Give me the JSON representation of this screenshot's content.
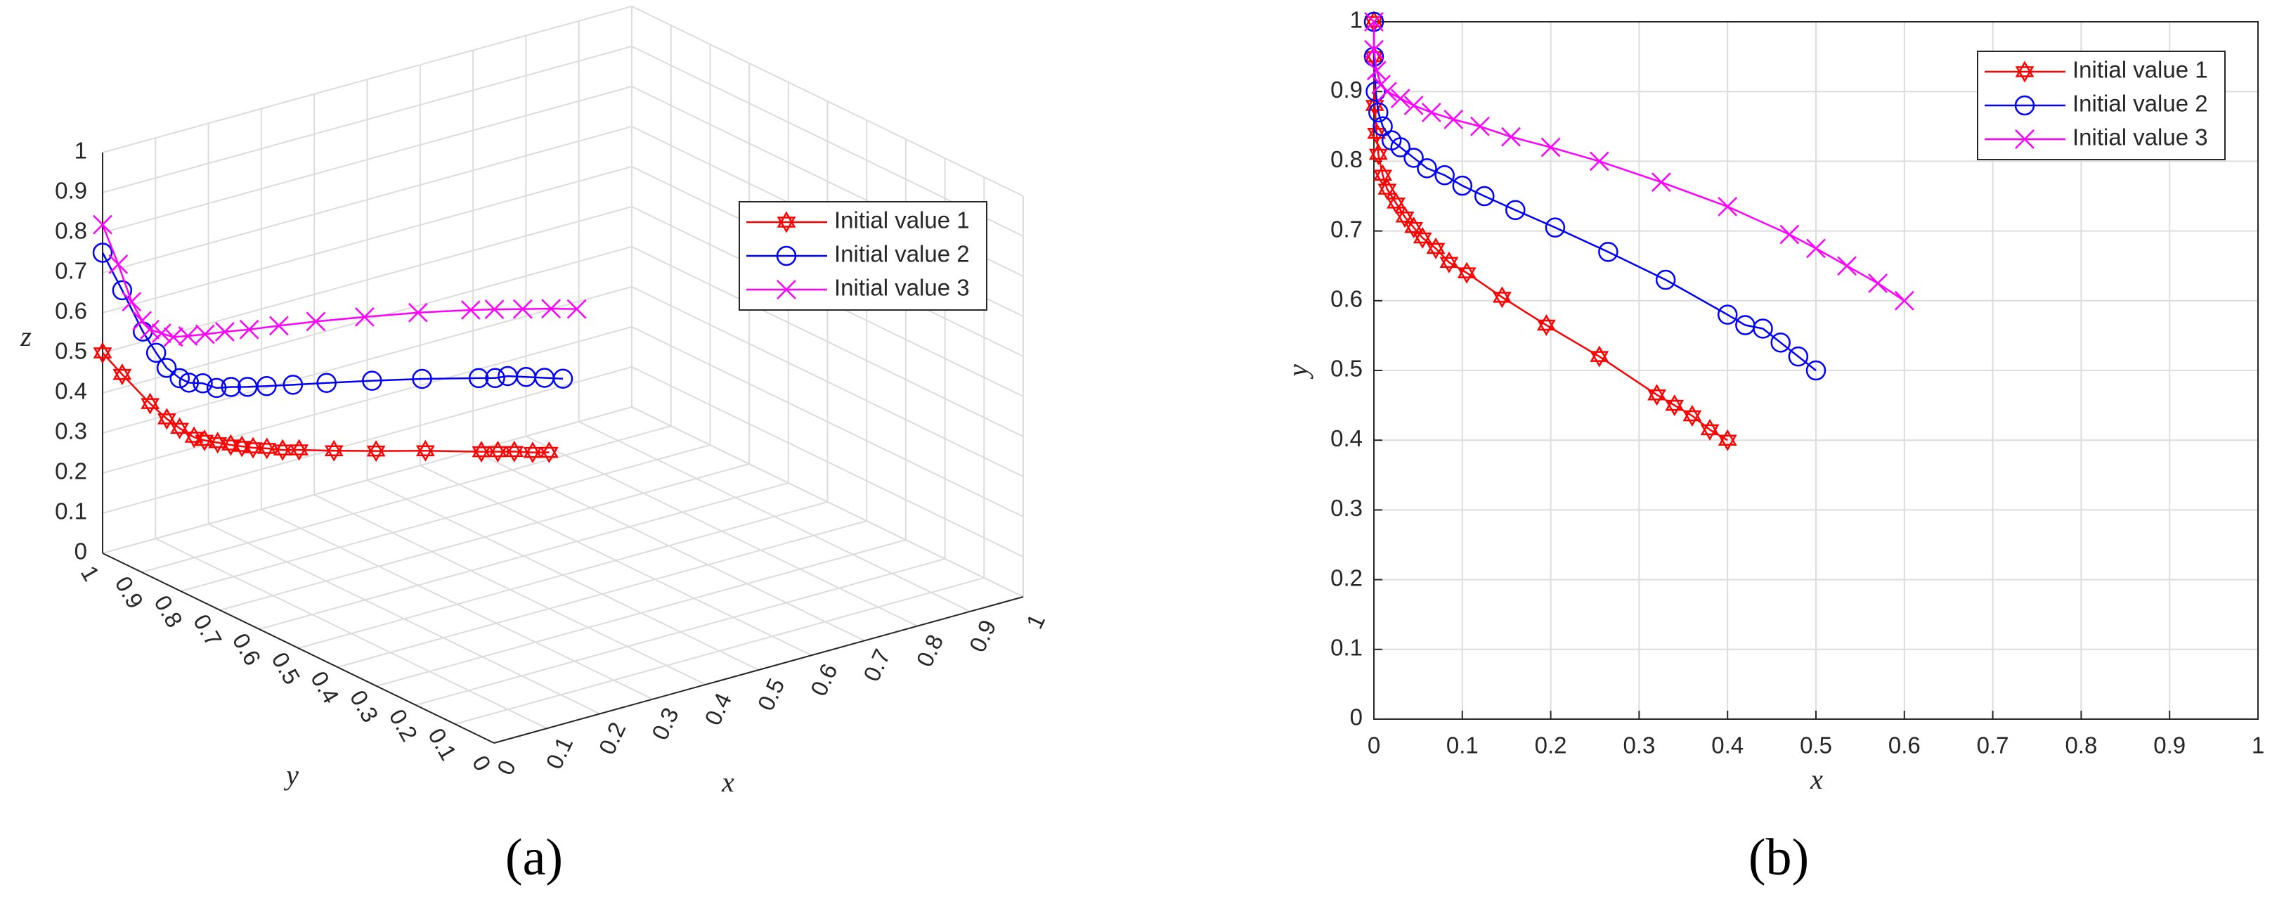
{
  "chart_data": [
    {
      "type": "line3d",
      "caption": "(a)",
      "xlabel": "x",
      "ylabel": "y",
      "zlabel": "z",
      "xlim": [
        0,
        1
      ],
      "ylim": [
        0,
        1
      ],
      "zlim": [
        0,
        1
      ],
      "xticks": [
        0,
        0.1,
        0.2,
        0.3,
        0.4,
        0.5,
        0.6,
        0.7,
        0.8,
        0.9,
        1
      ],
      "yticks": [
        0,
        0.1,
        0.2,
        0.3,
        0.4,
        0.5,
        0.6,
        0.7,
        0.8,
        0.9,
        1
      ],
      "zticks": [
        0,
        0.1,
        0.2,
        0.3,
        0.4,
        0.5,
        0.6,
        0.7,
        0.8,
        0.9,
        1
      ],
      "grid": true,
      "legend": "northeast",
      "series": [
        {
          "name": "Initial value 1",
          "color": "#ff0000",
          "marker": "hexagram",
          "x": [
            0.4,
            0.38,
            0.36,
            0.34,
            0.32,
            0.255,
            0.195,
            0.145,
            0.105,
            0.085,
            0.07,
            0.055,
            0.045,
            0.035,
            0.025,
            0.015,
            0.01,
            0.005,
            0.003,
            0.001,
            0,
            0
          ],
          "y": [
            0.4,
            0.415,
            0.435,
            0.45,
            0.465,
            0.52,
            0.565,
            0.605,
            0.64,
            0.655,
            0.675,
            0.69,
            0.705,
            0.72,
            0.74,
            0.76,
            0.78,
            0.81,
            0.84,
            0.88,
            0.95,
            1
          ],
          "z": [
            0.39,
            0.39,
            0.39,
            0.39,
            0.39,
            0.39,
            0.39,
            0.39,
            0.39,
            0.39,
            0.39,
            0.39,
            0.39,
            0.39,
            0.39,
            0.39,
            0.39,
            0.4,
            0.41,
            0.43,
            0.47,
            0.5
          ]
        },
        {
          "name": "Initial value 2",
          "color": "#0000ff",
          "marker": "circle",
          "x": [
            0.5,
            0.48,
            0.46,
            0.44,
            0.42,
            0.4,
            0.33,
            0.265,
            0.205,
            0.16,
            0.125,
            0.1,
            0.08,
            0.06,
            0.045,
            0.03,
            0.02,
            0.01,
            0.005,
            0.002,
            0,
            0
          ],
          "y": [
            0.5,
            0.52,
            0.54,
            0.56,
            0.565,
            0.58,
            0.63,
            0.67,
            0.705,
            0.73,
            0.75,
            0.765,
            0.78,
            0.79,
            0.805,
            0.82,
            0.83,
            0.85,
            0.87,
            0.9,
            0.95,
            1
          ],
          "z": [
            0.49,
            0.49,
            0.49,
            0.49,
            0.49,
            0.49,
            0.49,
            0.49,
            0.49,
            0.49,
            0.49,
            0.49,
            0.49,
            0.49,
            0.5,
            0.5,
            0.51,
            0.53,
            0.56,
            0.6,
            0.68,
            0.75
          ]
        },
        {
          "name": "Initial value 3",
          "color": "#ff00ff",
          "marker": "x",
          "x": [
            0.6,
            0.57,
            0.535,
            0.5,
            0.47,
            0.4,
            0.325,
            0.255,
            0.2,
            0.155,
            0.12,
            0.09,
            0.065,
            0.045,
            0.03,
            0.015,
            0.008,
            0.003,
            0,
            0
          ],
          "y": [
            0.6,
            0.625,
            0.65,
            0.675,
            0.695,
            0.735,
            0.77,
            0.8,
            0.82,
            0.835,
            0.85,
            0.86,
            0.87,
            0.88,
            0.89,
            0.9,
            0.91,
            0.93,
            0.96,
            1
          ],
          "z": [
            0.58,
            0.58,
            0.58,
            0.58,
            0.58,
            0.58,
            0.58,
            0.58,
            0.58,
            0.58,
            0.58,
            0.58,
            0.58,
            0.58,
            0.59,
            0.6,
            0.62,
            0.66,
            0.74,
            0.82
          ]
        }
      ]
    },
    {
      "type": "line",
      "caption": "(b)",
      "xlabel": "x",
      "ylabel": "y",
      "xlim": [
        0,
        1
      ],
      "ylim": [
        0,
        1
      ],
      "xticks": [
        0,
        0.1,
        0.2,
        0.3,
        0.4,
        0.5,
        0.6,
        0.7,
        0.8,
        0.9,
        1
      ],
      "yticks": [
        0,
        0.1,
        0.2,
        0.3,
        0.4,
        0.5,
        0.6,
        0.7,
        0.8,
        0.9,
        1
      ],
      "grid": true,
      "legend": "northeast",
      "series": [
        {
          "name": "Initial value 1",
          "color": "#ff0000",
          "marker": "hexagram",
          "x": [
            0.4,
            0.38,
            0.36,
            0.34,
            0.32,
            0.255,
            0.195,
            0.145,
            0.105,
            0.085,
            0.07,
            0.055,
            0.045,
            0.035,
            0.025,
            0.015,
            0.01,
            0.005,
            0.003,
            0.001,
            0,
            0
          ],
          "values": [
            0.4,
            0.415,
            0.435,
            0.45,
            0.465,
            0.52,
            0.565,
            0.605,
            0.64,
            0.655,
            0.675,
            0.69,
            0.705,
            0.72,
            0.74,
            0.76,
            0.78,
            0.81,
            0.84,
            0.88,
            0.95,
            1
          ]
        },
        {
          "name": "Initial value 2",
          "color": "#0000ff",
          "marker": "circle",
          "x": [
            0.5,
            0.48,
            0.46,
            0.44,
            0.42,
            0.4,
            0.33,
            0.265,
            0.205,
            0.16,
            0.125,
            0.1,
            0.08,
            0.06,
            0.045,
            0.03,
            0.02,
            0.01,
            0.005,
            0.002,
            0,
            0
          ],
          "values": [
            0.5,
            0.52,
            0.54,
            0.56,
            0.565,
            0.58,
            0.63,
            0.67,
            0.705,
            0.73,
            0.75,
            0.765,
            0.78,
            0.79,
            0.805,
            0.82,
            0.83,
            0.85,
            0.87,
            0.9,
            0.95,
            1
          ]
        },
        {
          "name": "Initial value 3",
          "color": "#ff00ff",
          "marker": "x",
          "x": [
            0.6,
            0.57,
            0.535,
            0.5,
            0.47,
            0.4,
            0.325,
            0.255,
            0.2,
            0.155,
            0.12,
            0.09,
            0.065,
            0.045,
            0.03,
            0.015,
            0.008,
            0.003,
            0,
            0
          ],
          "values": [
            0.6,
            0.625,
            0.65,
            0.675,
            0.695,
            0.735,
            0.77,
            0.8,
            0.82,
            0.835,
            0.85,
            0.86,
            0.87,
            0.88,
            0.89,
            0.9,
            0.91,
            0.93,
            0.96,
            1
          ]
        }
      ]
    }
  ]
}
